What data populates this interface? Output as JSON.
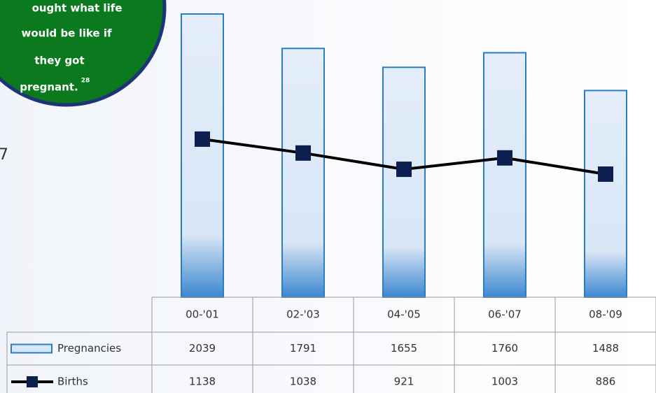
{
  "callout": {
    "lines": [
      "ought what life",
      "would be like if",
      "they got",
      "pregnant."
    ],
    "superscript": "28"
  },
  "side_text": "7",
  "chart_data": {
    "type": "bar",
    "categories": [
      "00-'01",
      "02-'03",
      "04-'05",
      "06-'07",
      "08-'09"
    ],
    "series": [
      {
        "name": "Pregnancies",
        "type": "bar",
        "color": "#2a7fc0",
        "values": [
          2039,
          1791,
          1655,
          1760,
          1488
        ]
      },
      {
        "name": "Births",
        "type": "line",
        "color": "#000000",
        "values": [
          1138,
          1038,
          921,
          1003,
          886
        ]
      }
    ]
  }
}
